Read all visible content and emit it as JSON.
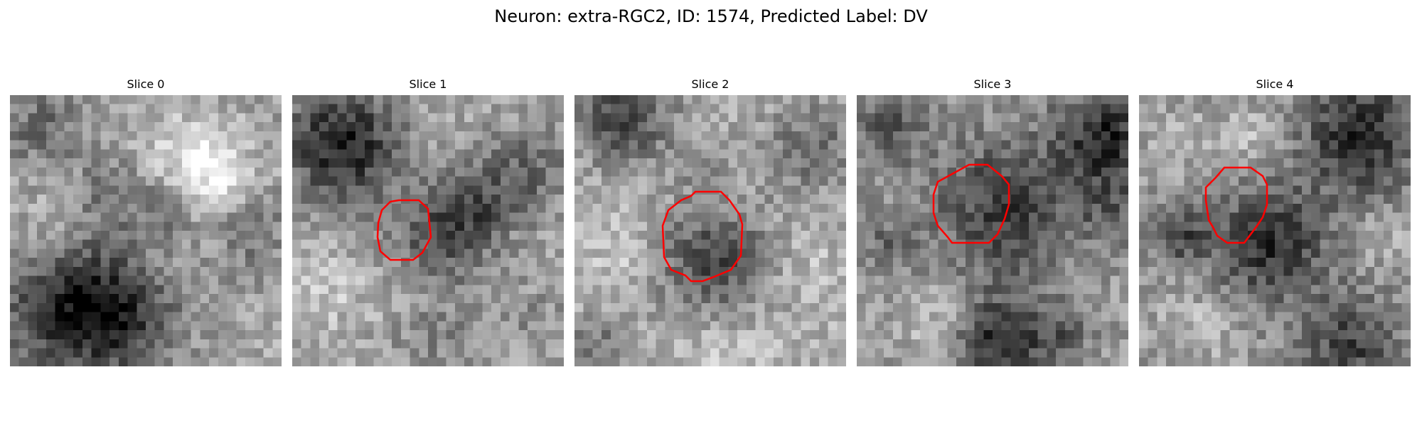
{
  "figure": {
    "title": "Neuron: extra-RGC2, ID: 1574, Predicted Label: DV"
  },
  "panels": [
    {
      "title": "Slice 0",
      "has_contour": false
    },
    {
      "title": "Slice 1",
      "has_contour": true
    },
    {
      "title": "Slice 2",
      "has_contour": true
    },
    {
      "title": "Slice 3",
      "has_contour": true
    },
    {
      "title": "Slice 4",
      "has_contour": true
    }
  ],
  "colors": {
    "contour": "#ff0000",
    "background": "#ffffff"
  }
}
